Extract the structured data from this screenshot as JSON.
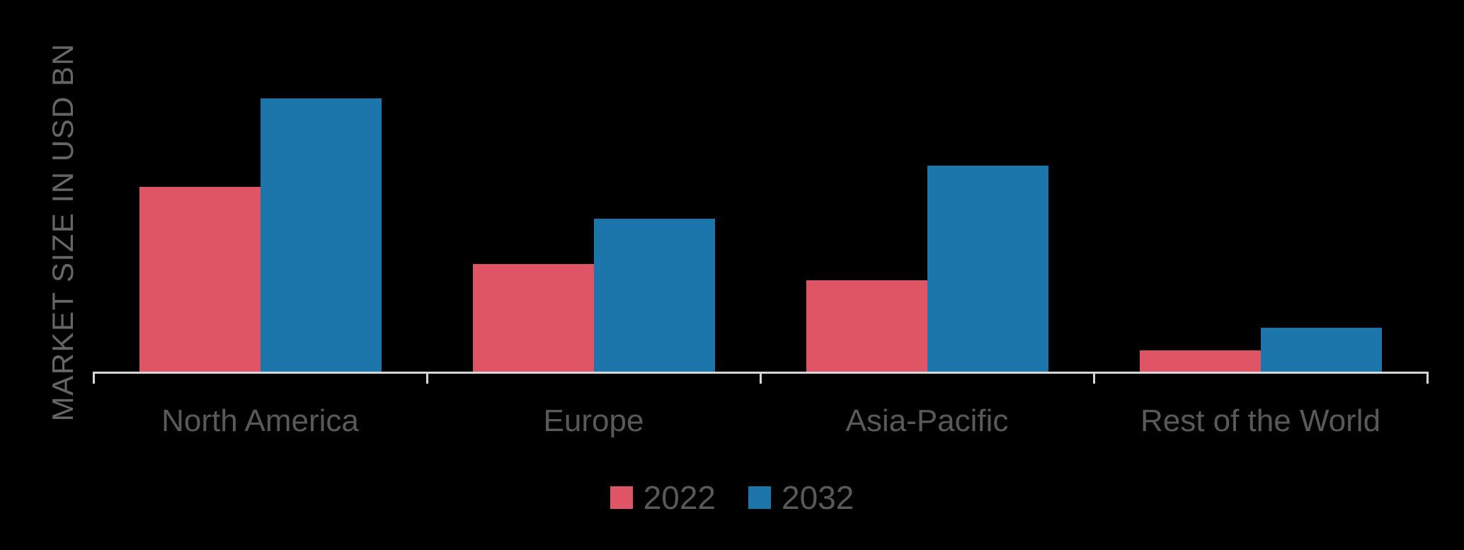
{
  "chart_data": {
    "type": "bar",
    "title": "",
    "xlabel": "",
    "ylabel": "MARKET SIZE IN USD BN",
    "categories": [
      "North America",
      "Europe",
      "Asia-Pacific",
      "Rest of the World"
    ],
    "series": [
      {
        "name": "2022",
        "color": "#e05565",
        "values": [
          49.7,
          29.0,
          24.6,
          5.7
        ]
      },
      {
        "name": "2032",
        "color": "#1c76ac",
        "values": [
          73.5,
          41.1,
          55.4,
          11.8
        ]
      }
    ],
    "ylim": [
      0,
      100
    ],
    "values_unit": "relative (y-axis has no numeric tick labels; values estimated as % of plot height)",
    "grid": false,
    "y_tick_labels": "none",
    "legend_position": "bottom-center"
  },
  "colors": {
    "background": "#000000",
    "axis": "#d6d6d6",
    "category_text": "#595959",
    "ylabel_text": "#666666",
    "legend_text": "#595959"
  }
}
